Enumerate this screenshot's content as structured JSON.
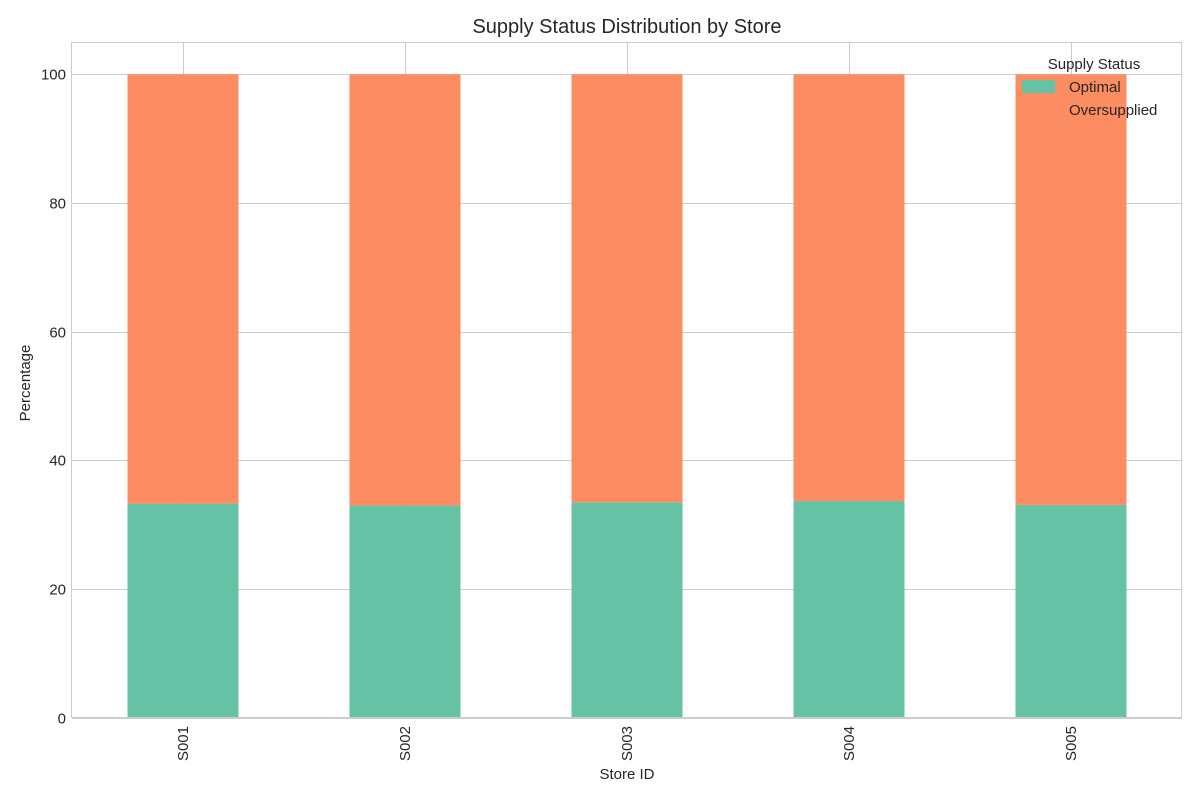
{
  "chart_data": {
    "type": "bar",
    "stacked": true,
    "title": "Supply Status Distribution by Store",
    "xlabel": "Store ID",
    "ylabel": "Percentage",
    "categories": [
      "S001",
      "S002",
      "S003",
      "S004",
      "S005"
    ],
    "series": [
      {
        "name": "Optimal",
        "color": "#66c2a5",
        "values": [
          33.3,
          33.0,
          33.5,
          33.7,
          33.1
        ]
      },
      {
        "name": "Oversupplied",
        "color": "#fc8d62",
        "values": [
          66.7,
          67.0,
          66.5,
          66.3,
          66.9
        ]
      }
    ],
    "ylim": [
      0,
      105
    ],
    "yticks": [
      0,
      20,
      40,
      60,
      80,
      100
    ],
    "grid": true,
    "legend": {
      "title": "Supply Status",
      "placement": "top-right"
    }
  }
}
